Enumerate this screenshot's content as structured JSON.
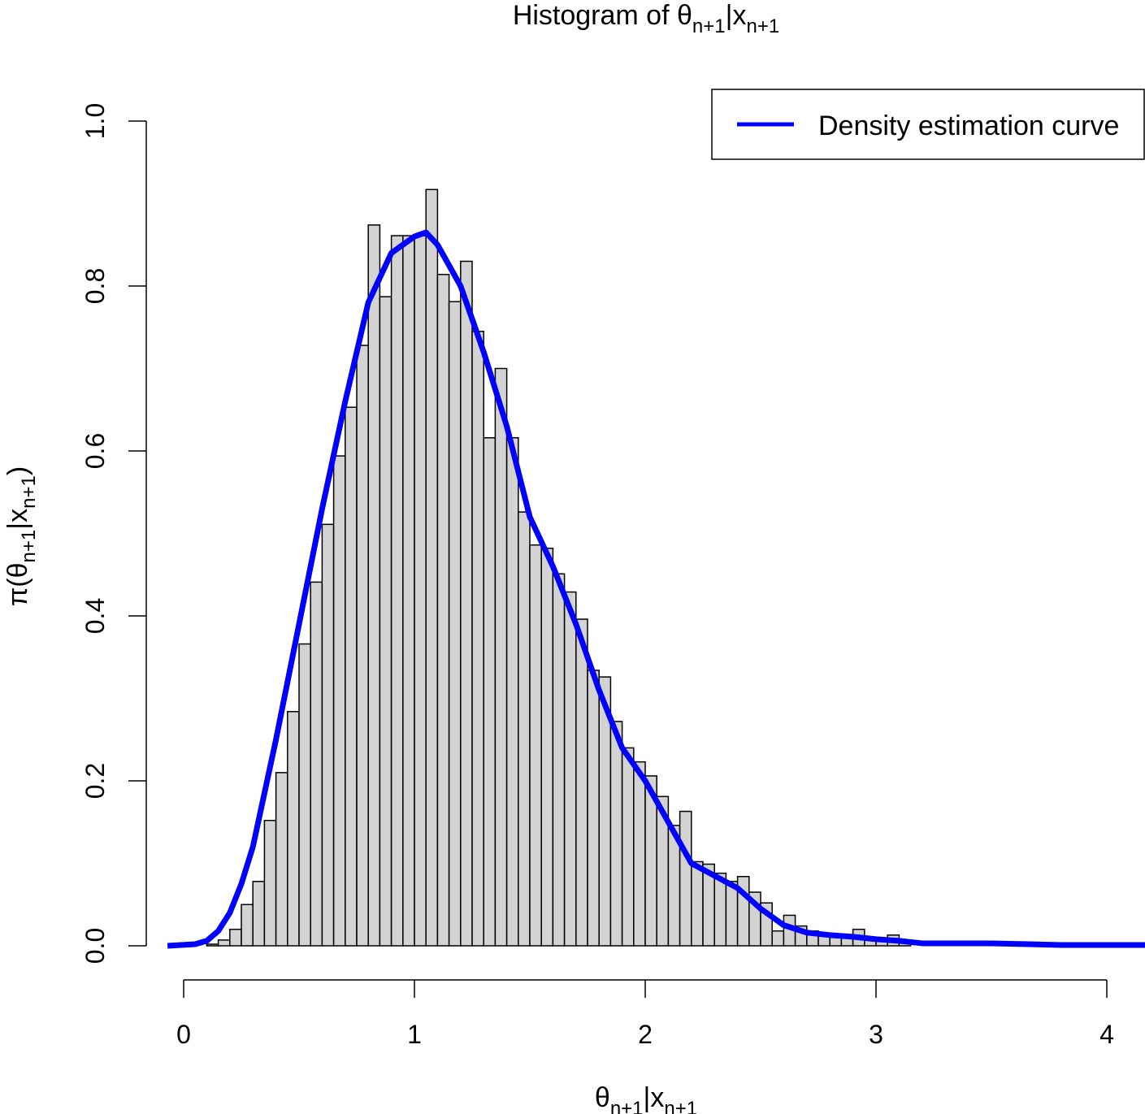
{
  "chart_data": {
    "type": "bar",
    "title": {
      "main": "Histogram of θ",
      "sub1": "n+1",
      "mid": "|x",
      "sub2": "n+1"
    },
    "xlabel": {
      "main": "θ",
      "sub1": "n+1",
      "mid": "|x",
      "sub2": "n+1"
    },
    "ylabel": {
      "pre": "π(θ",
      "sub1": "n+1",
      "mid": "|x",
      "sub2": "n+1",
      "post": ")"
    },
    "xlim": [
      -0.08,
      4.17
    ],
    "ylim": [
      0,
      1.0
    ],
    "xticks": [
      "0",
      "1",
      "2",
      "3",
      "4"
    ],
    "xtick_values": [
      0,
      1,
      2,
      3,
      4
    ],
    "yticks": [
      "0.0",
      "0.2",
      "0.4",
      "0.6",
      "0.8",
      "1.0"
    ],
    "ytick_values": [
      0,
      0.2,
      0.4,
      0.6,
      0.8,
      1.0
    ],
    "bin_start": 0.1,
    "bin_width": 0.05,
    "values": [
      0.002,
      0.007,
      0.02,
      0.05,
      0.078,
      0.152,
      0.21,
      0.284,
      0.366,
      0.441,
      0.511,
      0.594,
      0.653,
      0.728,
      0.874,
      0.787,
      0.861,
      0.861,
      0.861,
      0.917,
      0.814,
      0.781,
      0.83,
      0.745,
      0.616,
      0.7,
      0.616,
      0.526,
      0.486,
      0.482,
      0.451,
      0.429,
      0.396,
      0.334,
      0.326,
      0.272,
      0.24,
      0.223,
      0.206,
      0.181,
      0.146,
      0.163,
      0.102,
      0.099,
      0.088,
      0.078,
      0.084,
      0.065,
      0.052,
      0.018,
      0.037,
      0.024,
      0.018,
      0.014,
      0.01,
      0.01,
      0.02,
      0.01,
      0.008,
      0.013,
      0.004
    ],
    "bar_color": "#d3d3d3",
    "density_curve": {
      "name": "Density estimation curve",
      "color": "#0000ff",
      "x": [
        -0.07,
        0.05,
        0.1,
        0.15,
        0.2,
        0.25,
        0.3,
        0.4,
        0.5,
        0.6,
        0.7,
        0.8,
        0.85,
        0.9,
        1.0,
        1.05,
        1.1,
        1.2,
        1.3,
        1.4,
        1.5,
        1.6,
        1.7,
        1.8,
        1.9,
        2.0,
        2.1,
        2.2,
        2.3,
        2.4,
        2.5,
        2.6,
        2.7,
        2.8,
        2.9,
        3.0,
        3.1,
        3.2,
        3.5,
        3.8,
        4.17
      ],
      "y": [
        0,
        0.002,
        0.006,
        0.018,
        0.04,
        0.075,
        0.12,
        0.25,
        0.39,
        0.53,
        0.66,
        0.78,
        0.81,
        0.84,
        0.86,
        0.865,
        0.85,
        0.8,
        0.72,
        0.63,
        0.52,
        0.46,
        0.39,
        0.31,
        0.24,
        0.2,
        0.15,
        0.1,
        0.085,
        0.07,
        0.045,
        0.025,
        0.016,
        0.013,
        0.011,
        0.008,
        0.006,
        0.003,
        0.003,
        0.001,
        0.001
      ]
    },
    "legend": {
      "label": "Density estimation curve",
      "placement": "top-right"
    },
    "grid": false
  }
}
